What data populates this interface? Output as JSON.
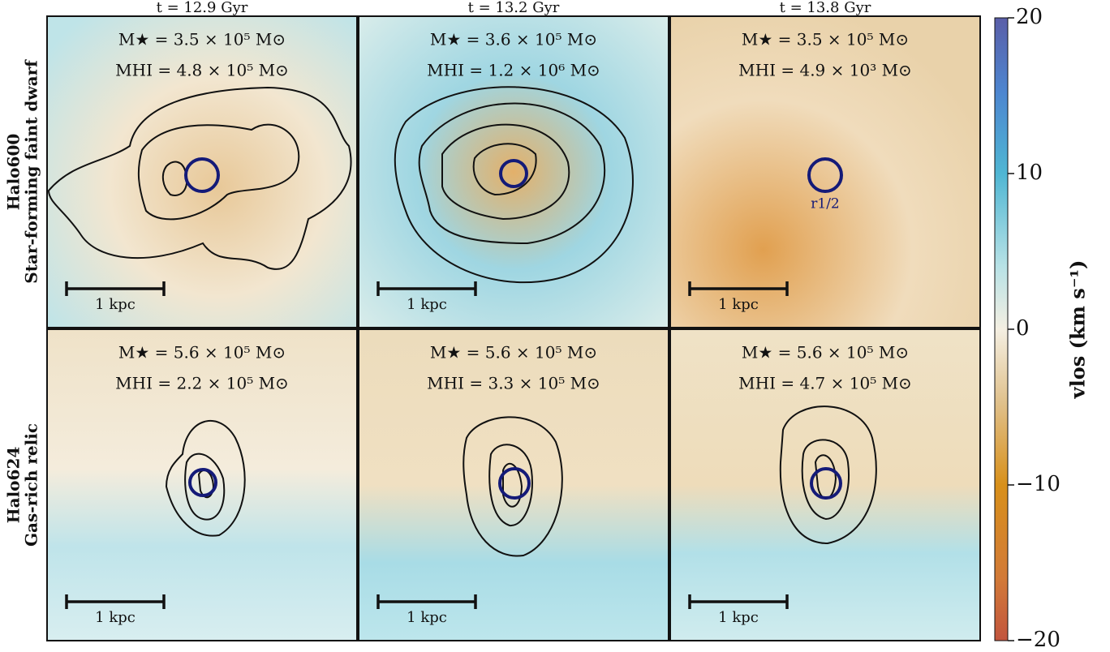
{
  "chart_data": {
    "type": "image-grid",
    "columns": [
      "t = 12.9 Gyr",
      "t = 13.2 Gyr",
      "t = 13.8 Gyr"
    ],
    "rows": [
      {
        "name": "Halo600",
        "label": "Star-forming faint dwarf",
        "panels": [
          {
            "mstar": "M★ = 3.5 × 10⁵ M⊙",
            "mhi": "MHI = 4.8 × 10⁵ M⊙"
          },
          {
            "mstar": "M★ = 3.6 × 10⁵ M⊙",
            "mhi": "MHI = 1.2 × 10⁶ M⊙"
          },
          {
            "mstar": "M★ = 3.5 × 10⁵ M⊙",
            "mhi": "MHI = 4.9 × 10³ M⊙"
          }
        ]
      },
      {
        "name": "Halo624",
        "label": "Gas-rich relic",
        "panels": [
          {
            "mstar": "M★ = 5.6 × 10⁵ M⊙",
            "mhi": "MHI = 2.2 × 10⁵ M⊙"
          },
          {
            "mstar": "M★ = 5.6 × 10⁵ M⊙",
            "mhi": "MHI = 3.3 × 10⁵ M⊙"
          },
          {
            "mstar": "M★ = 5.6 × 10⁵ M⊙",
            "mhi": "MHI = 4.7 × 10⁵ M⊙"
          }
        ]
      }
    ],
    "scale_bar": "1 kpc",
    "circle_label": "r1/2",
    "colorbar": {
      "label": "vlos (km s⁻¹)",
      "lim": [
        -20,
        20
      ],
      "ticks": [
        {
          "value": -20,
          "label": "−20"
        },
        {
          "value": -10,
          "label": "−10"
        },
        0,
        10,
        20
      ]
    }
  }
}
